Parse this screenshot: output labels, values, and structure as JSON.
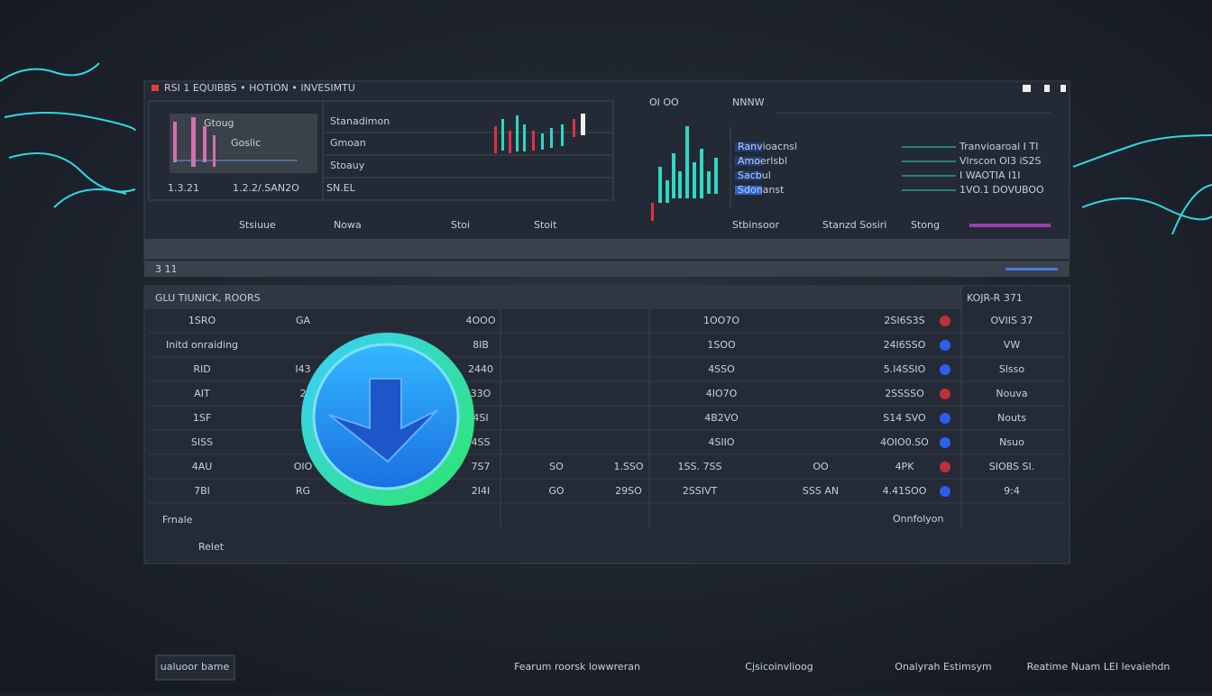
{
  "header": {
    "title": "RSI 1 EQUIBBS • HOTION • INVESIMTU",
    "window_label": "OI OO",
    "window_sub": "NNNW"
  },
  "top_left": {
    "labels": [
      "Stanadimon",
      "Gmoan",
      "Stoauy"
    ],
    "card_title": "Gtoug",
    "card_sub": "Goslic",
    "big_value": "1.2.2/.SAN2O",
    "big_suffix": "SN.EL",
    "value_label": "1.3.21"
  },
  "top_right": {
    "labels": [
      "Ranvioacnsl",
      "Amoerlsbl",
      "Sacbul",
      "Sdonanst"
    ],
    "values": [
      "Tranvioaroal I TI",
      "Vlrscon OI3 iS2S",
      "I WAOTIA I1I",
      "1VO.1 DOVUBOO"
    ]
  },
  "summary": [
    "Stsiuue",
    "Nowa",
    "Stoi",
    "Stoit",
    "Stbinsoor",
    "Stanzd Sosiri",
    "Stong"
  ],
  "section_bar": "3 11",
  "table": {
    "title": "GLU TIUNICK, ROORS",
    "side_title": "KOJR-R 371",
    "rows": [
      {
        "name": "1SRO",
        "code": "GA",
        "amount": "4OOO",
        "vol": "1OO7O",
        "price": "2SI6S3S",
        "side": "OVIIS 37"
      },
      {
        "name": "Initd onraiding",
        "amount": "8IB",
        "vol": "1SOO",
        "price": "24I6SSO",
        "side": "VW"
      },
      {
        "name": "RID",
        "code": "I43",
        "amount": "2440",
        "vol": "4SSO",
        "price": "5.I4SSIO",
        "side": "Slsso"
      },
      {
        "name": "AIT",
        "code": "2",
        "amount": "33O",
        "vol": "4IO7O",
        "price": "2SSSSO",
        "side": "Nouva"
      },
      {
        "name": "1SF",
        "amount": "4SI",
        "vol": "4B2VO",
        "price": "S14 SVO",
        "side": "Nouts"
      },
      {
        "name": "SISS",
        "amount": "4SS",
        "vol": "4SIIO",
        "price": "4OIO0.SO",
        "side": "Nsuo"
      },
      {
        "name": "4AU",
        "code": "OIO",
        "amount": "7S7",
        "v1": "SO",
        "v2": "1.SSO",
        "v3": "1SS. 7SS",
        "mid": "OO",
        "price": "4PK",
        "side": "SIOBS SI."
      },
      {
        "name": "7BI",
        "code": "RG",
        "amount": "2I4I",
        "v1": "GO",
        "v2": "29SO",
        "v3": "2SSIVT",
        "mid": "SSS AN",
        "price": "4.41SOO",
        "side": "9:4"
      }
    ],
    "footer_left": "Frnale",
    "footer_action": "Relet",
    "footer_right": "Onnfolyon"
  },
  "footer": [
    "ualuoor bame",
    "Fearum roorsk lowwreran",
    "Cjsicoinvlioog",
    "Onalyrah Estimsym",
    "Reatime Nuam LEI levaiehdn"
  ]
}
